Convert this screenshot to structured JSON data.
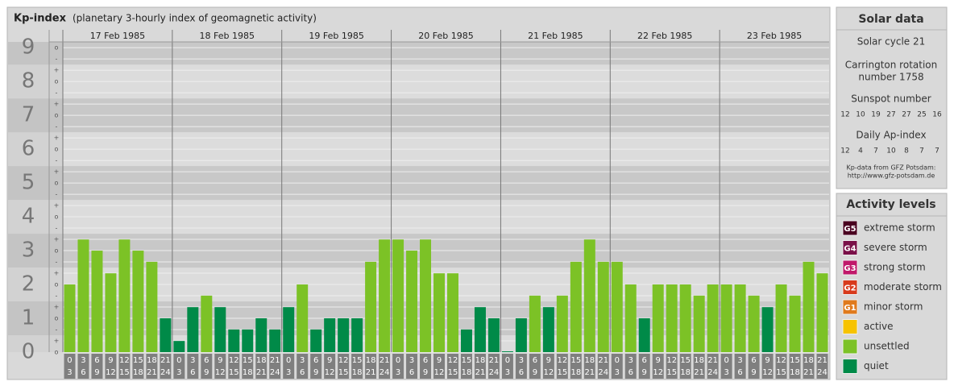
{
  "header": {
    "title": "Kp-index",
    "subtitle": "(planetary 3-hourly index of geomagnetic activity)"
  },
  "chart_data": {
    "type": "bar",
    "days": [
      "17 Feb 1985",
      "18 Feb 1985",
      "19 Feb 1985",
      "20 Feb 1985",
      "21 Feb 1985",
      "22 Feb 1985",
      "23 Feb 1985"
    ],
    "hours_start": [
      "0",
      "3",
      "6",
      "9",
      "12",
      "15",
      "18",
      "21"
    ],
    "hours_end": [
      "3",
      "6",
      "9",
      "12",
      "15",
      "18",
      "21",
      "24"
    ],
    "values": [
      2,
      3.33,
      3,
      2.33,
      3.33,
      3,
      2.67,
      1,
      0.33,
      1.33,
      1.67,
      1.33,
      0.67,
      0.67,
      1,
      0.67,
      1.33,
      2,
      0.67,
      1,
      1,
      1,
      2.67,
      3.33,
      3.33,
      3,
      3.33,
      2.33,
      2.33,
      0.67,
      1.33,
      1,
      0,
      1,
      1.67,
      1.33,
      1.67,
      2.67,
      3.33,
      2.67,
      2.67,
      2,
      1,
      2,
      2,
      2,
      1.67,
      2,
      2,
      2,
      1.67,
      1.33,
      2,
      1.67,
      2.67,
      2.33
    ],
    "levels": [
      6,
      6,
      6,
      6,
      6,
      6,
      6,
      7,
      7,
      7,
      6,
      7,
      7,
      7,
      7,
      7,
      7,
      6,
      7,
      7,
      7,
      7,
      6,
      6,
      6,
      6,
      6,
      6,
      6,
      7,
      7,
      7,
      7,
      7,
      6,
      7,
      6,
      6,
      6,
      6,
      6,
      6,
      7,
      6,
      6,
      6,
      6,
      6,
      6,
      6,
      6,
      7,
      6,
      6,
      6,
      6
    ],
    "ylim": [
      0,
      9.17
    ],
    "yticks": [
      0,
      1,
      2,
      3,
      4,
      5,
      6,
      7,
      8,
      9
    ],
    "minor_marks": {
      "minus": "-",
      "o": "o",
      "plus": "+"
    }
  },
  "solar": {
    "title": "Solar data",
    "cycle": "Solar cycle 21",
    "carrington": [
      "Carrington rotation",
      "number 1758"
    ],
    "sunspot_label": "Sunspot number",
    "sunspot": [
      12,
      10,
      19,
      27,
      27,
      25,
      16
    ],
    "ap_label": "Daily Ap-index",
    "ap": [
      12,
      4,
      7,
      10,
      8,
      7,
      7
    ],
    "source": [
      "Kp-data from GFZ Potsdam:",
      "http://www.gfz-potsdam.de"
    ]
  },
  "activity": {
    "title": "Activity levels",
    "items": [
      {
        "badge": "G5",
        "label": "extreme storm",
        "color": "#4a0020"
      },
      {
        "badge": "G4",
        "label": "severe storm",
        "color": "#7a1048"
      },
      {
        "badge": "G3",
        "label": "strong storm",
        "color": "#c0186a"
      },
      {
        "badge": "G2",
        "label": "moderate storm",
        "color": "#d83a1c"
      },
      {
        "badge": "G1",
        "label": "minor storm",
        "color": "#e07a1c"
      },
      {
        "badge": null,
        "label": "active",
        "color": "#f7c300"
      },
      {
        "badge": null,
        "label": "unsettled",
        "color": "#7cc226"
      },
      {
        "badge": null,
        "label": "quiet",
        "color": "#008a48"
      }
    ]
  }
}
